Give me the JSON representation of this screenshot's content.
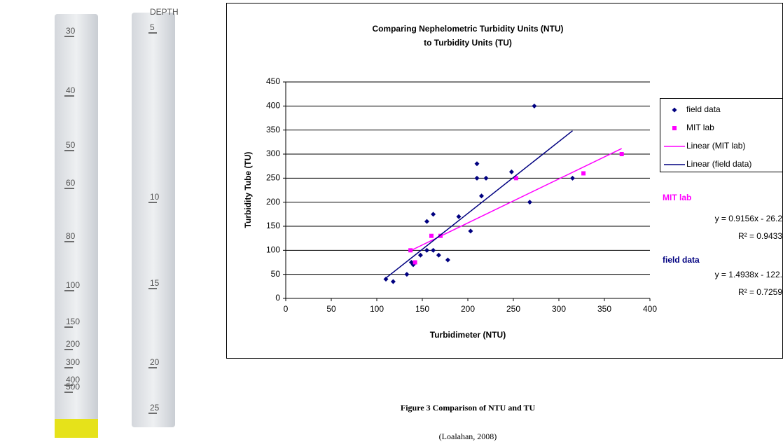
{
  "photo": {
    "tube_1_labels": [
      "30",
      "40",
      "50",
      "60",
      "80",
      "100",
      "150",
      "200",
      "300",
      "400",
      "500"
    ],
    "tube_2_labels": [
      "DEPTH",
      "5",
      "10",
      "15",
      "20",
      "25"
    ]
  },
  "chart_data": {
    "type": "scatter",
    "title": "Comparing Nephelometric Turbidity Units (NTU)",
    "subtitle": "to Turbidity Units (TU)",
    "x_label": "Turbidimeter (NTU)",
    "y_label": "Turbidity Tube (TU)",
    "xlim": [
      0,
      400
    ],
    "xticks": [
      0,
      50,
      100,
      150,
      200,
      250,
      300,
      350,
      400
    ],
    "ylim": [
      0,
      450
    ],
    "yticks": [
      0,
      50,
      100,
      150,
      200,
      250,
      300,
      350,
      400,
      450
    ],
    "grid": true,
    "legend": "right",
    "series": [
      {
        "name": "field data",
        "color": "#000080",
        "marker": "diamond",
        "x": [
          110,
          118,
          133,
          138,
          140,
          148,
          155,
          155,
          162,
          162,
          168,
          178,
          190,
          203,
          210,
          210,
          215,
          220,
          248,
          268,
          273,
          315
        ],
        "values": [
          40,
          35,
          50,
          75,
          70,
          90,
          160,
          100,
          175,
          100,
          90,
          80,
          170,
          140,
          280,
          250,
          213,
          250,
          263,
          200,
          400,
          250
        ]
      },
      {
        "name": "MIT lab",
        "color": "#ff00ff",
        "marker": "square",
        "x": [
          137,
          142,
          160,
          170,
          253,
          327,
          369
        ],
        "values": [
          100,
          75,
          130,
          130,
          250,
          260,
          300
        ]
      },
      {
        "name": "Linear (MIT lab)",
        "color": "#ff00ff",
        "marker": "line",
        "x": [
          137,
          369
        ],
        "values": [
          99.2,
          311.6
        ]
      },
      {
        "name": "Linear (field data)",
        "color": "#000080",
        "marker": "line",
        "x": [
          110,
          315
        ],
        "values": [
          42.3,
          348.5
        ]
      }
    ],
    "annotations": [
      {
        "text": "MIT lab",
        "color": "#ff00ff",
        "bold": true
      },
      {
        "text": "y = 0.9156x - 26.2",
        "color": "#000000",
        "bold": false
      },
      {
        "text": "R² = 0.9433",
        "color": "#000000",
        "bold": false
      },
      {
        "text": "field data",
        "color": "#000080",
        "bold": true
      },
      {
        "text": "y = 1.4938x - 122.",
        "color": "#000000",
        "bold": false
      },
      {
        "text": "R² = 0.7259",
        "color": "#000000",
        "bold": false
      }
    ]
  },
  "caption": {
    "title": "Figure 3  Comparison of NTU and TU",
    "source": "(Loalahan, 2008)"
  }
}
